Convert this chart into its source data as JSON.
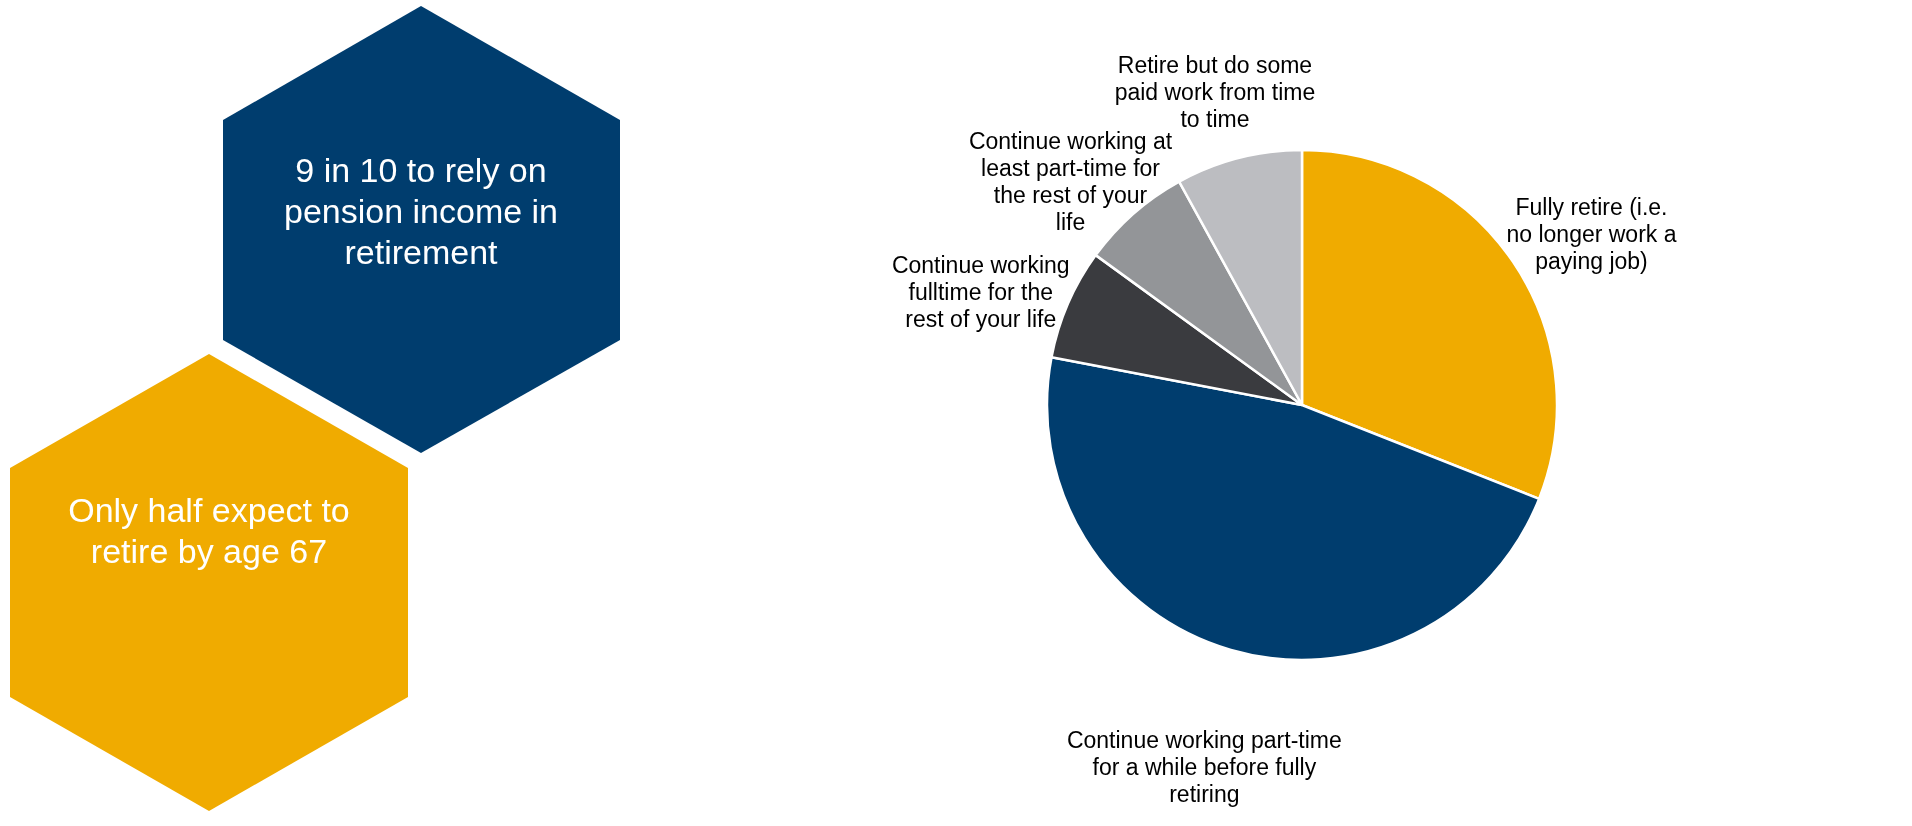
{
  "chart_data": {
    "type": "pie",
    "categories": [
      "Fully retire (i.e. no longer work a paying job)",
      "Continue working part-time for a while before fully retiring",
      "Continue working fulltime for the rest of your life",
      "Continue working at least part-time for the rest of your life",
      "Retire but do some paid work from time to time"
    ],
    "values": [
      31,
      47,
      7,
      7,
      8
    ],
    "colors": [
      "#f0ab00",
      "#003d6e",
      "#3a3b3f",
      "#939598",
      "#bcbdc1"
    ],
    "annotations": [
      "9 in 10 to rely on pension income in retirement",
      "Only half expect to retire by age 67"
    ]
  }
}
